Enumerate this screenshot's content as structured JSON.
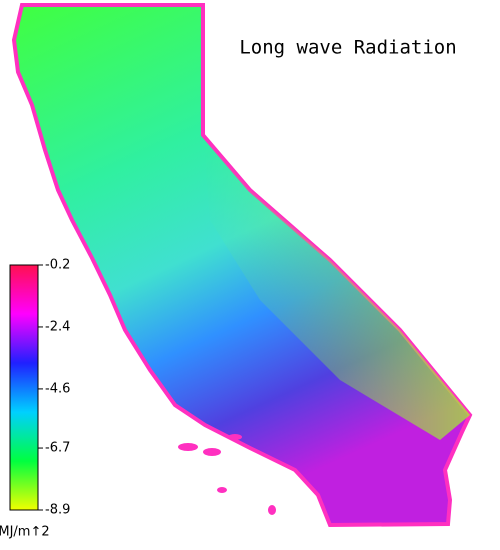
{
  "title": "Long wave Radiation",
  "legend": {
    "ticks": [
      -0.2,
      -2.4,
      -4.6,
      -6.7,
      -8.9
    ],
    "unit": "MJ/m↑2",
    "colors": [
      "#ff1050",
      "#ff00ff",
      "#2020ff",
      "#00d0ff",
      "#00ff40",
      "#f0ff00"
    ]
  }
}
